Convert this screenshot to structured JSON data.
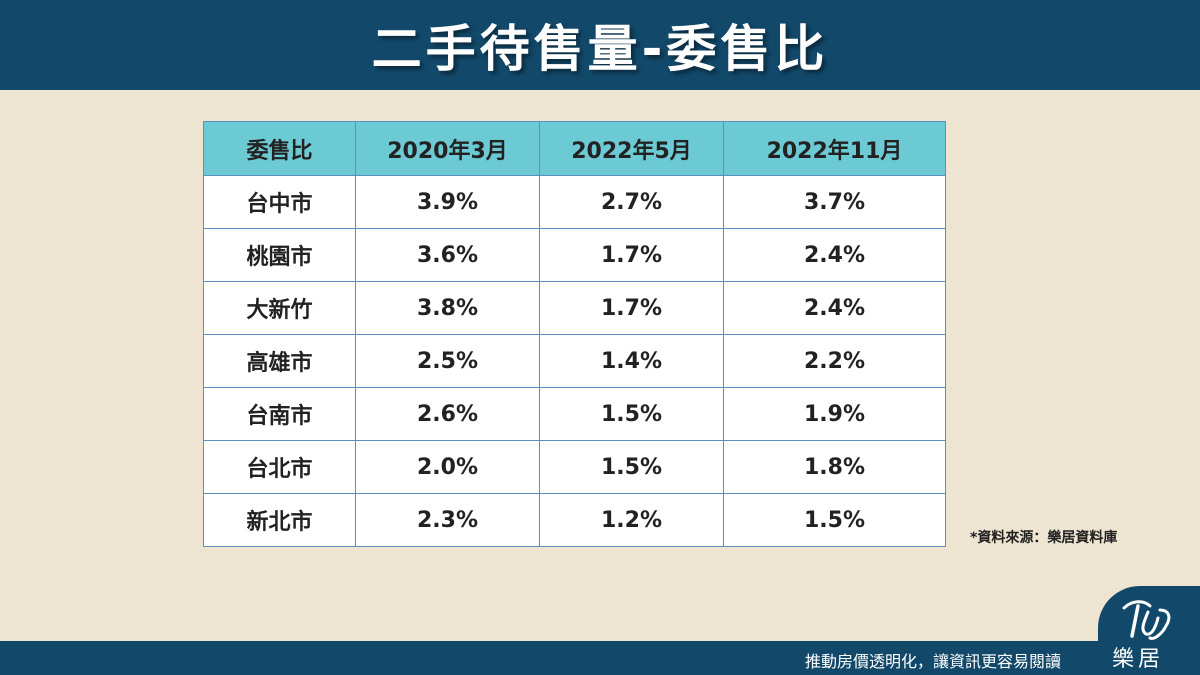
{
  "header": {
    "title": "二手待售量-委售比"
  },
  "table": {
    "columns": [
      "委售比",
      "2020年3月",
      "2022年5月",
      "2022年11月"
    ],
    "rows": [
      [
        "台中市",
        "3.9%",
        "2.7%",
        "3.7%"
      ],
      [
        "桃園市",
        "3.6%",
        "1.7%",
        "2.4%"
      ],
      [
        "大新竹",
        "3.8%",
        "1.7%",
        "2.4%"
      ],
      [
        "高雄市",
        "2.5%",
        "1.4%",
        "2.2%"
      ],
      [
        "台南市",
        "2.6%",
        "1.5%",
        "1.9%"
      ],
      [
        "台北市",
        "2.0%",
        "1.5%",
        "1.8%"
      ],
      [
        "新北市",
        "2.3%",
        "1.2%",
        "1.5%"
      ]
    ]
  },
  "source_note": "*資料來源：樂居資料庫",
  "footer": {
    "slogan": "推動房價透明化，讓資訊更容易閱讀"
  },
  "logo": {
    "text": "樂居"
  },
  "colors": {
    "header_bg": "#12496b",
    "page_bg": "#ede4d2",
    "table_header_bg": "#6ccad4",
    "table_border": "#5a8fbf"
  }
}
